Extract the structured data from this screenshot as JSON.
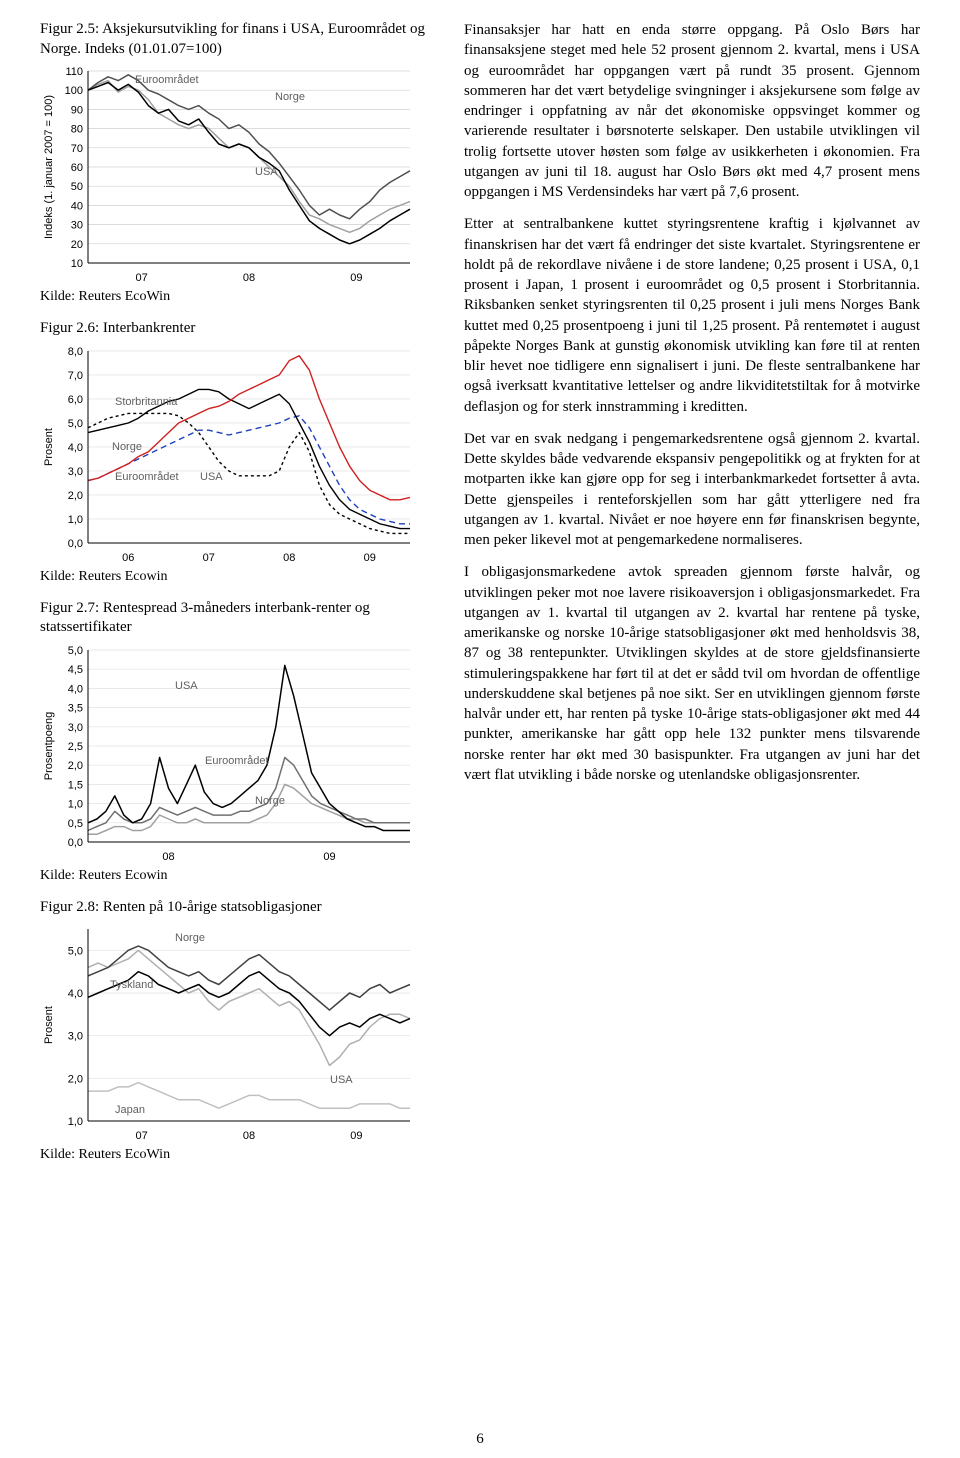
{
  "left": {
    "fig25": {
      "title": "Figur 2.5: Aksjekursutvikling for finans i USA, Euroområdet og Norge. Indeks (01.01.07=100)",
      "source": "Kilde: Reuters EcoWin",
      "type": "line",
      "ylabel": "Indeks (1. januar 2007 = 100)",
      "xticks": [
        "07",
        "08",
        "09"
      ],
      "ylim": [
        10,
        110
      ],
      "ytick_step": 10,
      "series_labels": {
        "euro": "Euroområdet",
        "norge": "Norge",
        "usa": "USA"
      },
      "colors": {
        "euro": "#a0a0a0",
        "norge": "#505050",
        "usa": "#000000",
        "grid": "#d0d0d0",
        "bg": "#ffffff"
      },
      "line_width": 1.5,
      "series": {
        "euro": [
          100,
          103,
          105,
          99,
          102,
          100,
          95,
          88,
          85,
          82,
          80,
          82,
          80,
          75,
          70,
          72,
          70,
          65,
          60,
          55,
          50,
          42,
          35,
          33,
          30,
          28,
          26,
          28,
          32,
          35,
          38,
          40,
          42
        ],
        "norge": [
          100,
          104,
          107,
          105,
          108,
          105,
          100,
          98,
          95,
          92,
          90,
          92,
          88,
          85,
          80,
          82,
          78,
          72,
          68,
          62,
          55,
          48,
          40,
          35,
          38,
          35,
          33,
          38,
          42,
          48,
          52,
          55,
          58
        ],
        "usa": [
          100,
          102,
          104,
          100,
          103,
          99,
          92,
          88,
          90,
          84,
          82,
          85,
          78,
          72,
          70,
          72,
          70,
          65,
          62,
          58,
          48,
          40,
          32,
          28,
          25,
          22,
          20,
          22,
          25,
          28,
          32,
          35,
          38
        ]
      }
    },
    "fig26": {
      "title": "Figur 2.6: Interbankrenter",
      "source": "Kilde: Reuters Ecowin",
      "type": "line",
      "ylabel": "Prosent",
      "xticks": [
        "06",
        "07",
        "08",
        "09"
      ],
      "ylim": [
        0,
        8
      ],
      "ytick_step": 1,
      "series_labels": {
        "uk": "Storbritannia",
        "norge": "Norge",
        "euro": "Euroområdet",
        "usa": "USA"
      },
      "colors": {
        "uk": "#000000",
        "norge": "#d02020",
        "euro": "#2040c0",
        "usa": "#000000",
        "grid": "#e0e0e0",
        "bg": "#ffffff"
      },
      "dashes": {
        "euro": "6,4",
        "usa": "3,3"
      },
      "line_width": 1.4,
      "series": {
        "uk": [
          4.6,
          4.7,
          4.8,
          4.9,
          5.0,
          5.2,
          5.5,
          5.7,
          5.9,
          6.0,
          6.2,
          6.4,
          6.4,
          6.3,
          6.0,
          5.8,
          5.6,
          5.8,
          6.0,
          6.2,
          5.8,
          5.0,
          4.2,
          3.2,
          2.4,
          1.8,
          1.4,
          1.2,
          1.0,
          0.8,
          0.7,
          0.6,
          0.6
        ],
        "norge": [
          2.6,
          2.7,
          2.9,
          3.1,
          3.3,
          3.6,
          3.8,
          4.2,
          4.6,
          5.0,
          5.2,
          5.4,
          5.6,
          5.7,
          5.9,
          6.2,
          6.4,
          6.6,
          6.8,
          7.0,
          7.6,
          7.8,
          7.2,
          6.0,
          5.0,
          4.0,
          3.2,
          2.6,
          2.2,
          2.0,
          1.8,
          1.8,
          1.9
        ],
        "euro": [
          2.6,
          2.7,
          2.9,
          3.1,
          3.3,
          3.5,
          3.7,
          3.9,
          4.1,
          4.3,
          4.5,
          4.7,
          4.7,
          4.6,
          4.5,
          4.6,
          4.7,
          4.8,
          4.9,
          5.0,
          5.2,
          5.3,
          4.8,
          4.0,
          3.2,
          2.4,
          1.8,
          1.4,
          1.2,
          1.0,
          0.9,
          0.8,
          0.8
        ],
        "usa": [
          4.8,
          5.0,
          5.2,
          5.3,
          5.4,
          5.4,
          5.4,
          5.4,
          5.4,
          5.3,
          5.0,
          4.6,
          4.0,
          3.4,
          3.0,
          2.8,
          2.8,
          2.8,
          2.8,
          3.0,
          4.0,
          4.6,
          3.8,
          2.4,
          1.6,
          1.2,
          1.0,
          0.8,
          0.6,
          0.5,
          0.4,
          0.4,
          0.4
        ]
      }
    },
    "fig27": {
      "title": "Figur 2.7: Rentespread 3-måneders interbank-renter og statssertifikater",
      "source": "Kilde: Reuters Ecowin",
      "type": "line",
      "ylabel": "Prosentpoeng",
      "xticks": [
        "08",
        "09"
      ],
      "ylim": [
        0,
        5
      ],
      "ytick_step": 0.5,
      "series_labels": {
        "usa": "USA",
        "euro": "Euroområdet",
        "norge": "Norge"
      },
      "colors": {
        "usa": "#000000",
        "euro": "#707070",
        "norge": "#a0a0a0",
        "grid": "#e0e0e0",
        "bg": "#ffffff"
      },
      "line_width": 1.5,
      "series": {
        "usa": [
          0.5,
          0.6,
          0.8,
          1.2,
          0.7,
          0.5,
          0.6,
          1.0,
          2.2,
          1.4,
          1.0,
          1.5,
          2.0,
          1.3,
          1.0,
          0.9,
          1.0,
          1.2,
          1.4,
          1.6,
          2.0,
          3.0,
          4.6,
          3.8,
          2.8,
          1.8,
          1.4,
          1.0,
          0.8,
          0.6,
          0.5,
          0.4,
          0.4,
          0.3,
          0.3,
          0.3,
          0.3
        ],
        "euro": [
          0.3,
          0.4,
          0.5,
          0.8,
          0.6,
          0.5,
          0.5,
          0.6,
          0.9,
          0.8,
          0.7,
          0.8,
          0.9,
          0.8,
          0.7,
          0.7,
          0.7,
          0.8,
          0.8,
          0.9,
          1.0,
          1.4,
          2.2,
          2.0,
          1.6,
          1.2,
          1.0,
          0.9,
          0.8,
          0.7,
          0.6,
          0.6,
          0.5,
          0.5,
          0.5,
          0.5,
          0.5
        ],
        "norge": [
          0.2,
          0.2,
          0.3,
          0.4,
          0.4,
          0.3,
          0.3,
          0.4,
          0.7,
          0.6,
          0.5,
          0.5,
          0.6,
          0.5,
          0.5,
          0.5,
          0.5,
          0.5,
          0.5,
          0.6,
          0.7,
          1.0,
          1.5,
          1.4,
          1.2,
          1.0,
          0.9,
          0.8,
          0.7,
          0.6,
          0.6,
          0.5,
          0.5,
          0.5,
          0.5,
          0.5,
          0.5
        ]
      }
    },
    "fig28": {
      "title": "Figur 2.8: Renten på 10-årige statsobligasjoner",
      "source": "Kilde: Reuters EcoWin",
      "type": "line",
      "ylabel": "Prosent",
      "xticks": [
        "07",
        "08",
        "09"
      ],
      "ylim": [
        1,
        5.5
      ],
      "ytick_step": 1,
      "yticks_shown": [
        1.0,
        2.0,
        3.0,
        4.0,
        5.0
      ],
      "series_labels": {
        "norge": "Norge",
        "tyskland": "Tyskland",
        "usa": "USA",
        "japan": "Japan"
      },
      "colors": {
        "norge": "#404040",
        "tyskland": "#000000",
        "usa": "#b0b0b0",
        "japan": "#c0c0c0",
        "grid": "#e0e0e0",
        "bg": "#ffffff"
      },
      "line_width": 1.5,
      "series": {
        "norge": [
          4.4,
          4.5,
          4.6,
          4.8,
          5.0,
          5.1,
          5.0,
          4.8,
          4.6,
          4.5,
          4.4,
          4.5,
          4.3,
          4.2,
          4.4,
          4.6,
          4.8,
          4.9,
          4.7,
          4.5,
          4.4,
          4.2,
          4.0,
          3.8,
          3.6,
          3.8,
          4.0,
          3.9,
          4.1,
          4.2,
          4.0,
          4.1,
          4.2
        ],
        "tyskland": [
          3.9,
          4.0,
          4.1,
          4.2,
          4.3,
          4.5,
          4.4,
          4.2,
          4.1,
          4.0,
          4.1,
          4.2,
          4.0,
          3.9,
          4.0,
          4.2,
          4.4,
          4.5,
          4.3,
          4.1,
          4.0,
          3.8,
          3.5,
          3.2,
          3.0,
          3.2,
          3.3,
          3.2,
          3.4,
          3.5,
          3.4,
          3.3,
          3.4
        ],
        "usa": [
          4.6,
          4.7,
          4.6,
          4.7,
          4.8,
          5.0,
          4.8,
          4.6,
          4.4,
          4.2,
          4.0,
          4.1,
          3.8,
          3.6,
          3.8,
          3.9,
          4.0,
          4.1,
          3.9,
          3.7,
          3.8,
          3.6,
          3.2,
          2.8,
          2.3,
          2.5,
          2.8,
          2.9,
          3.2,
          3.4,
          3.5,
          3.5,
          3.4
        ],
        "japan": [
          1.7,
          1.7,
          1.7,
          1.8,
          1.8,
          1.9,
          1.8,
          1.7,
          1.6,
          1.5,
          1.5,
          1.5,
          1.4,
          1.3,
          1.4,
          1.5,
          1.6,
          1.6,
          1.5,
          1.5,
          1.5,
          1.5,
          1.4,
          1.3,
          1.3,
          1.3,
          1.3,
          1.4,
          1.4,
          1.4,
          1.4,
          1.3,
          1.3
        ]
      }
    }
  },
  "right": {
    "p1": "Finansaksjer har hatt en enda større oppgang. På Oslo Børs har finansaksjene steget med hele 52 prosent gjennom 2. kvartal, mens i USA og euroområdet har oppgangen vært på rundt 35 prosent. Gjennom sommeren har det vært betydelige svingninger i aksjekursene som følge av endringer i oppfatning av når det økonomiske oppsvinget kommer og varierende resultater i børsnoterte selskaper. Den ustabile utviklingen vil trolig fortsette utover høsten som følge av usikkerheten i økonomien. Fra utgangen av juni til 18. august har Oslo Børs økt med 4,7 prosent mens oppgangen i MS Verdensindeks har vært på 7,6 prosent.",
    "p2": "Etter at sentralbankene kuttet styringsrentene kraftig i kjølvannet av finanskrisen har det vært få endringer det siste kvartalet. Styringsrentene er holdt på de rekordlave nivåene i de store landene; 0,25 prosent i USA, 0,1 prosent i Japan, 1 prosent i euroområdet og 0,5 prosent i Storbritannia. Riksbanken senket styringsrenten til 0,25 prosent i juli mens Norges Bank kuttet med 0,25 prosentpoeng i juni til 1,25 prosent. På rentemøtet i august påpekte Norges Bank at gunstig økonomisk utvikling kan føre til at renten blir hevet noe tidligere enn signalisert i juni. De fleste sentralbankene har også iverksatt kvantitative lettelser og andre likviditetstiltak for å motvirke deflasjon og for sterk innstramming i kreditten.",
    "p3": "Det var en svak nedgang i pengemarkedsrentene også gjennom 2. kvartal. Dette skyldes både vedvarende ekspansiv pengepolitikk og at frykten for at motparten ikke kan gjøre opp for seg i interbankmarkedet fortsetter å avta. Dette gjenspeiles i renteforskjellen som har gått ytterligere ned fra utgangen av 1. kvartal. Nivået er noe høyere enn før finanskrisen begynte, men peker likevel mot at pengemarkedene normaliseres.",
    "p4": "I obligasjonsmarkedene avtok spreaden gjennom første halvår, og utviklingen peker mot noe lavere risikoaversjon i obligasjonsmarkedet. Fra utgangen av 1. kvartal til utgangen av 2. kvartal har rentene på tyske, amerikanske og norske 10-årige statsobligasjoner økt med henholdsvis 38, 87 og 38 rentepunkter. Utviklingen skyldes at de store gjeldsfinansierte stimuleringspakkene har ført til at det er sådd tvil om hvordan de offentlige underskuddene skal betjenes på noe sikt. Ser en utviklingen gjennom første halvår under ett, har renten på tyske 10-årige stats-obligasjoner økt med 44 punkter, amerikanske har gått opp hele 132 punkter mens tilsvarende norske renter har økt med 30 basispunkter. Fra utgangen av juni har det vært flat utvikling i både norske og utenlandske obligasjonsrenter."
  },
  "page_number": "6"
}
